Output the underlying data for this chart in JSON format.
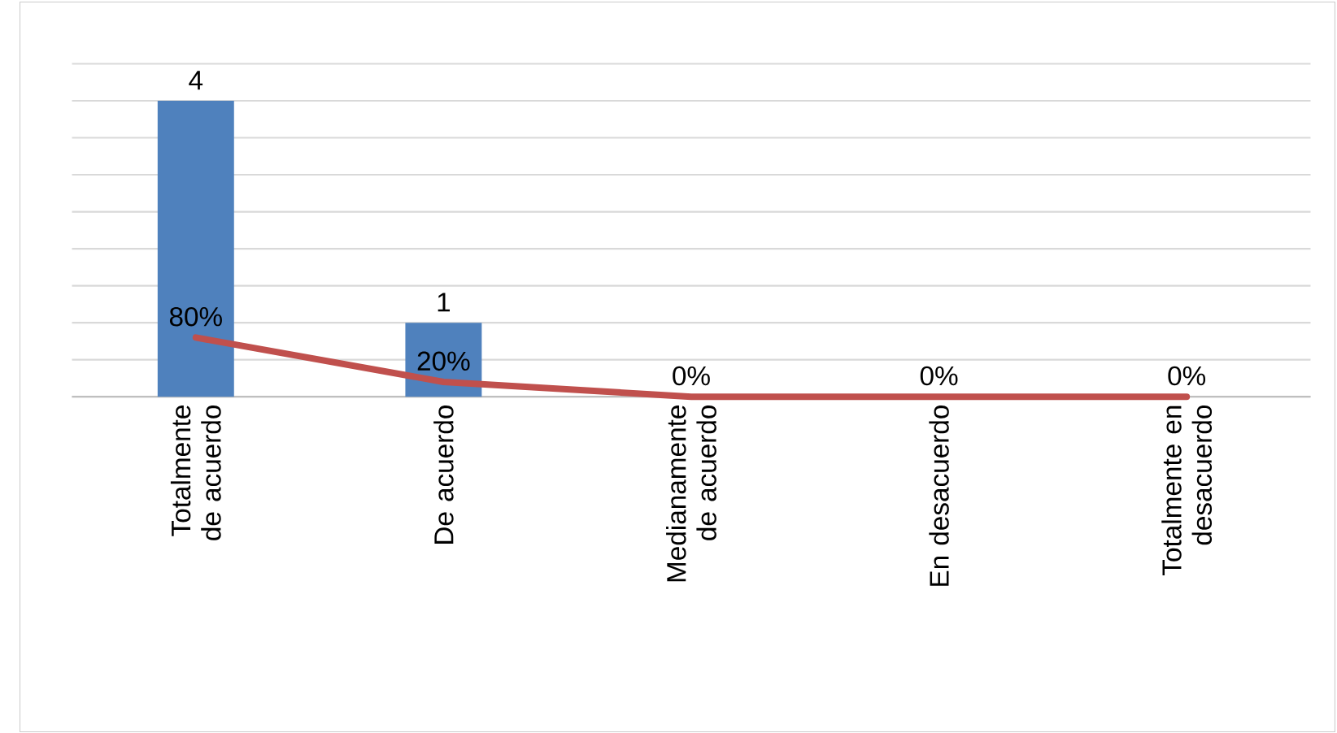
{
  "chart_data": {
    "type": "bar",
    "categories": [
      "Totalmente de acuerdo",
      "De acuerdo",
      "Medianamente de acuerdo",
      "En desacuerdo",
      "Totalmente en desacuerdo"
    ],
    "series": [
      {
        "color": "#4f81bd",
        "values": [
          4,
          1,
          0,
          0,
          0
        ],
        "value_labels": [
          "4",
          "1",
          null,
          null,
          null
        ]
      },
      {
        "type": "line",
        "color": "#c0504d",
        "values": [
          0.8,
          0.2,
          0,
          0,
          0
        ],
        "value_labels": [
          "80%",
          "20%",
          "0%",
          "0%",
          "0%"
        ],
        "line_style": "solid",
        "marker": "none"
      }
    ],
    "ylim": [
      0,
      4.5
    ],
    "yticks": [
      {
        "value": 0,
        "label": null
      },
      {
        "value": 0.5,
        "label": null
      },
      {
        "value": 1,
        "label": null
      },
      {
        "value": 1.5,
        "label": null
      },
      {
        "value": 2,
        "label": null
      },
      {
        "value": 2.5,
        "label": null
      },
      {
        "value": 3,
        "label": null
      },
      {
        "value": 3.5,
        "label": null
      },
      {
        "value": 4,
        "label": null
      },
      {
        "value": 4.5,
        "label": null
      }
    ],
    "grid": "y",
    "tick_labels": "x"
  }
}
